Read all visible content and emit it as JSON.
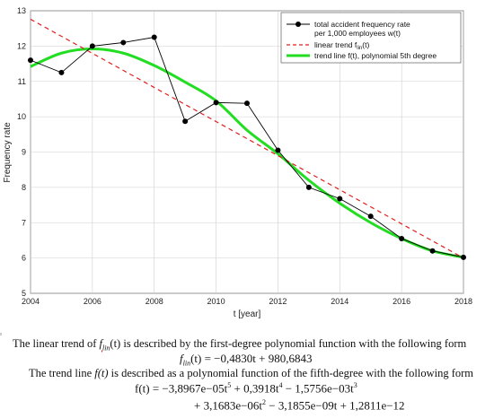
{
  "chart_data": {
    "type": "line",
    "title": "",
    "xlabel": "t [year]",
    "ylabel": "Frequency rate",
    "xlim": [
      2004,
      2018
    ],
    "ylim": [
      5,
      13
    ],
    "xticks": [
      2004,
      2006,
      2008,
      2010,
      2012,
      2014,
      2016,
      2018
    ],
    "yticks": [
      5,
      6,
      7,
      8,
      9,
      10,
      11,
      12,
      13
    ],
    "grid": true,
    "legend_position": "top-right",
    "series": [
      {
        "name": "total accident frequency rate per 1,000 employees w(t)",
        "name_lines": [
          "total accident frequency rate",
          "per 1,000 employees w(t)"
        ],
        "style": "black line with dot markers",
        "color": "#000000",
        "x": [
          2004,
          2005,
          2006,
          2007,
          2008,
          2009,
          2010,
          2011,
          2012,
          2013,
          2014,
          2015,
          2016,
          2017,
          2018
        ],
        "y": [
          11.6,
          11.25,
          12.0,
          12.1,
          12.25,
          9.87,
          10.4,
          10.38,
          9.05,
          8.0,
          7.68,
          7.18,
          6.55,
          6.2,
          6.02
        ]
      },
      {
        "name": "linear trend f_lin(t)",
        "name_main": "linear trend f",
        "name_sub": "lin",
        "name_tail": "(t)",
        "style": "red dashed",
        "color": "#e02020",
        "x": [
          2004,
          2018
        ],
        "y": [
          12.76,
          6.0
        ]
      },
      {
        "name": "trend line f(t), polynomial 5th degree",
        "style": "green thick",
        "color": "#22dd22",
        "x": [
          2004,
          2005,
          2006,
          2007,
          2008,
          2009,
          2010,
          2011,
          2012,
          2013,
          2014,
          2015,
          2016,
          2017,
          2018
        ],
        "y": [
          11.42,
          11.8,
          11.92,
          11.8,
          11.45,
          10.98,
          10.45,
          9.62,
          8.95,
          8.2,
          7.55,
          7.0,
          6.55,
          6.2,
          6.02
        ]
      }
    ]
  },
  "caption": {
    "marker": "¹",
    "line1_before": "The linear trend of ",
    "line1_func": "f",
    "line1_sub": "lin",
    "line1_after": "(t) is described by the first-degree polynomial function with the following form",
    "eq1_lhs": "f",
    "eq1_sub": "lin",
    "eq1_rhs": "(t) = −0,4830t + 980,6843",
    "line2_before": "The trend line ",
    "line2_func": "f(t)",
    "line2_after": " is described as a polynomial function of the fifth-degree with the following form",
    "eq2_a": "f(t) = −3,8967e−05t",
    "eq2_a_sup": "5",
    "eq2_b": " + 0,3918t",
    "eq2_b_sup": "4",
    "eq2_c": " − 1,5756e−03t",
    "eq2_c_sup": "3",
    "eq3_a": "+ 3,1683e−06t",
    "eq3_a_sup": "2",
    "eq3_b": " − 3,1855e−09t + 1,2811e−12"
  }
}
